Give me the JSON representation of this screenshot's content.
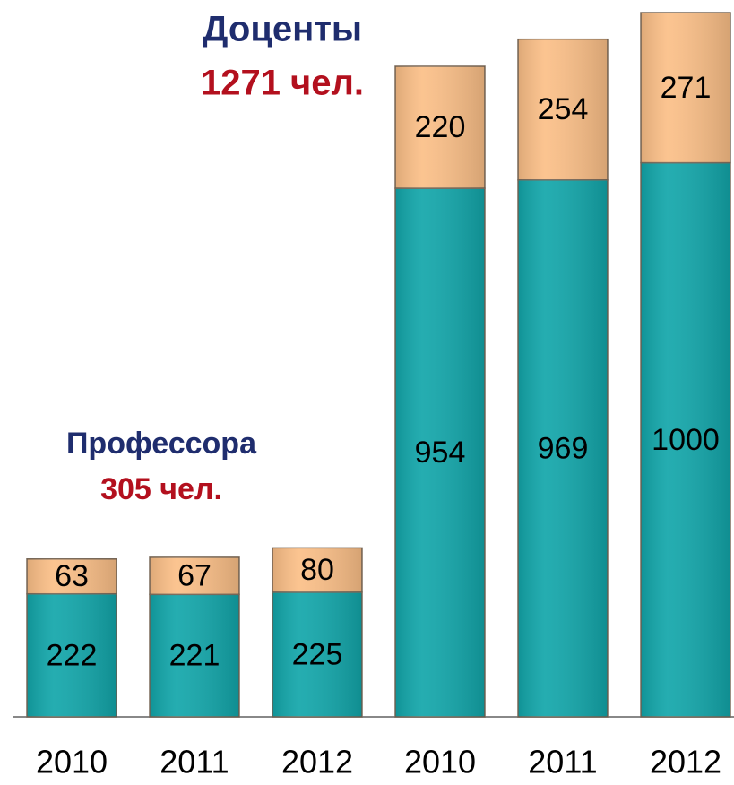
{
  "chart_data": {
    "type": "stacked_bar",
    "categories": [
      "2010",
      "2011",
      "2012",
      "2010",
      "2011",
      "2012"
    ],
    "series": [
      {
        "color": "#12a6aa",
        "values": [
          222,
          221,
          225,
          954,
          969,
          1000
        ]
      },
      {
        "color": "#fbbf87",
        "values": [
          63,
          67,
          80,
          220,
          254,
          271
        ]
      }
    ],
    "annotations": [
      "Профессора",
      "305 чел.",
      "Доценты",
      "1271 чел."
    ]
  }
}
